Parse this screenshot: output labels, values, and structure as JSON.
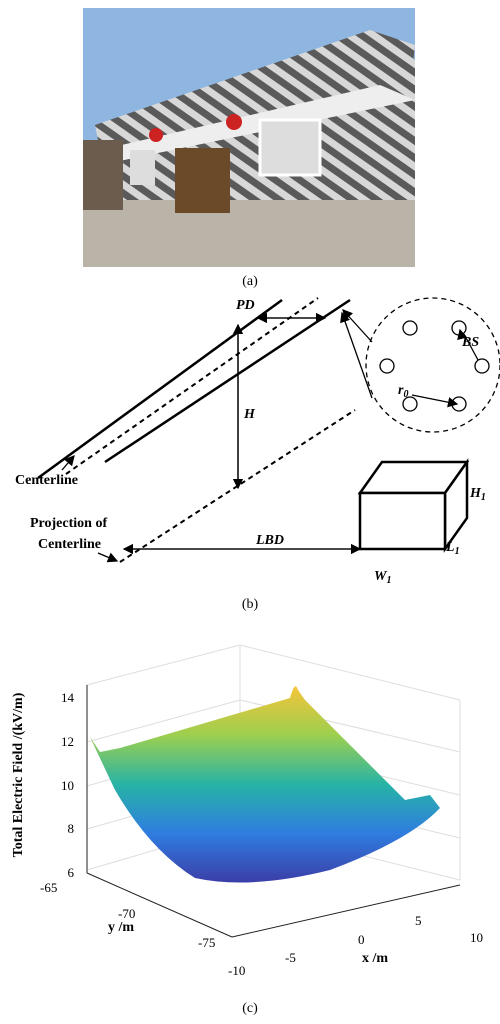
{
  "panel_a": {
    "caption": "(a)"
  },
  "panel_b": {
    "caption": "(b)",
    "pd": "PD",
    "h": "H",
    "bs": "BS",
    "r": "r",
    "r_sub": "0",
    "centerline": "Centerline",
    "projection": [
      "Projection of",
      "Centerline"
    ],
    "lbd": "LBD",
    "h1": "H",
    "h1_sub": "1",
    "l1": "L",
    "l1_sub": "1",
    "w1": "W",
    "w1_sub": "1"
  },
  "panel_c": {
    "caption": "(c)",
    "z_label": "Total Electric Field /(kV/m)",
    "y_label": "y /m",
    "x_label": "x /m",
    "z_ticks": [
      "14",
      "12",
      "10",
      "8",
      "6"
    ],
    "y_ticks": [
      "-65",
      "-70",
      "-75"
    ],
    "x_ticks": [
      "-10",
      "-5",
      "0",
      "5",
      "10"
    ]
  }
}
